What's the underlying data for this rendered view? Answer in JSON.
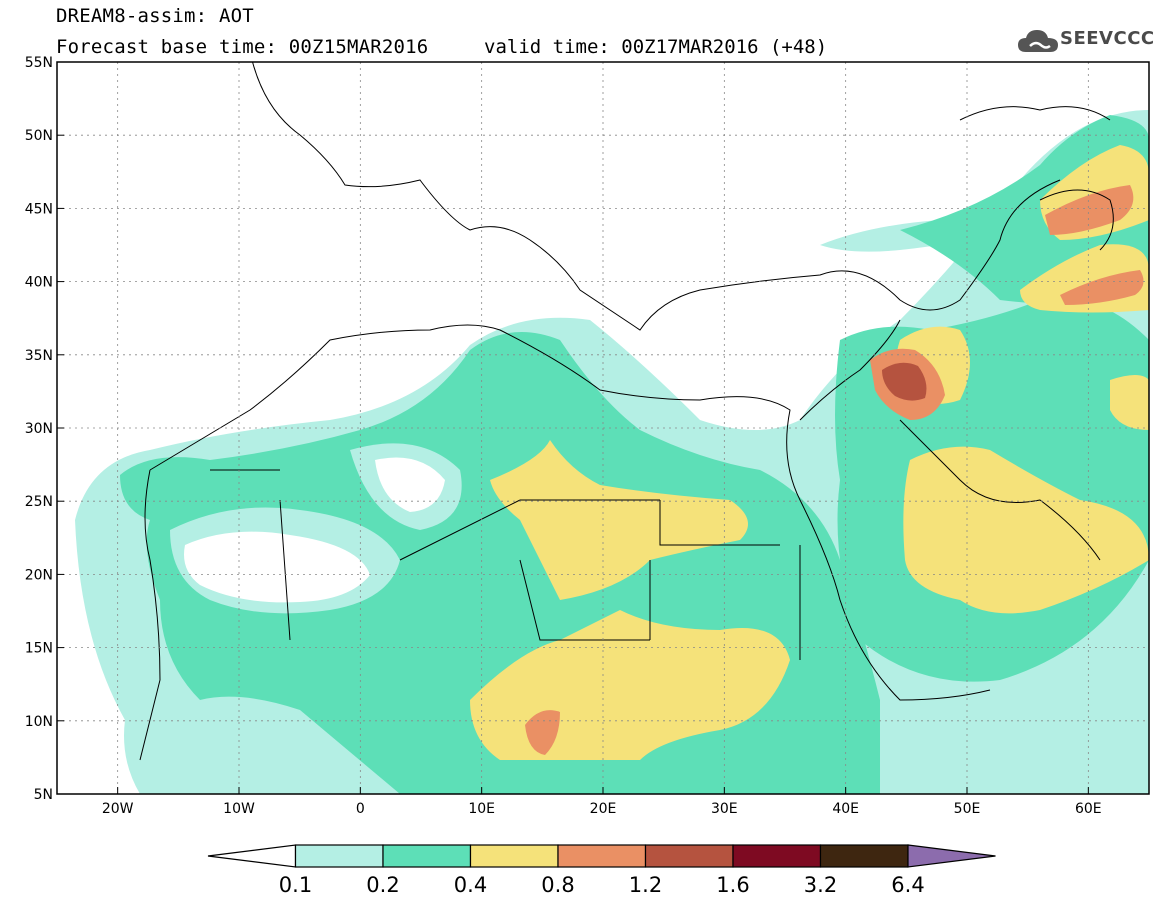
{
  "header": {
    "title_line1": "DREAM8-assim: AOT",
    "title_line2": "Forecast base time: 00Z15MAR2016",
    "valid_time": "valid time: 00Z17MAR2016 (+48)",
    "logo_text": "SEEVCCC",
    "logo_icon": "cloud-logo-icon"
  },
  "map": {
    "lon_range": [
      -25,
      65
    ],
    "lat_range": [
      5,
      55
    ],
    "x_ticks": [
      {
        "lon": -20,
        "label": "20W"
      },
      {
        "lon": -10,
        "label": "10W"
      },
      {
        "lon": 0,
        "label": "0"
      },
      {
        "lon": 10,
        "label": "10E"
      },
      {
        "lon": 20,
        "label": "20E"
      },
      {
        "lon": 30,
        "label": "30E"
      },
      {
        "lon": 40,
        "label": "40E"
      },
      {
        "lon": 50,
        "label": "50E"
      },
      {
        "lon": 60,
        "label": "60E"
      }
    ],
    "y_ticks": [
      {
        "lat": 5,
        "label": "5N"
      },
      {
        "lat": 10,
        "label": "10N"
      },
      {
        "lat": 15,
        "label": "15N"
      },
      {
        "lat": 20,
        "label": "20N"
      },
      {
        "lat": 25,
        "label": "25N"
      },
      {
        "lat": 30,
        "label": "30N"
      },
      {
        "lat": 35,
        "label": "35N"
      },
      {
        "lat": 40,
        "label": "40N"
      },
      {
        "lat": 45,
        "label": "45N"
      },
      {
        "lat": 50,
        "label": "50N"
      },
      {
        "lat": 55,
        "label": "55N"
      }
    ],
    "grid": "dotted"
  },
  "colorbar": {
    "levels": [
      "0.1",
      "0.2",
      "0.4",
      "0.8",
      "1.2",
      "1.6",
      "3.2",
      "6.4"
    ],
    "colors": [
      "#ffffff",
      "#b4efe4",
      "#5ddfb7",
      "#f5e27a",
      "#ea9064",
      "#b5533f",
      "#7e0a22",
      "#3e2610",
      "#8c6cad"
    ]
  }
}
